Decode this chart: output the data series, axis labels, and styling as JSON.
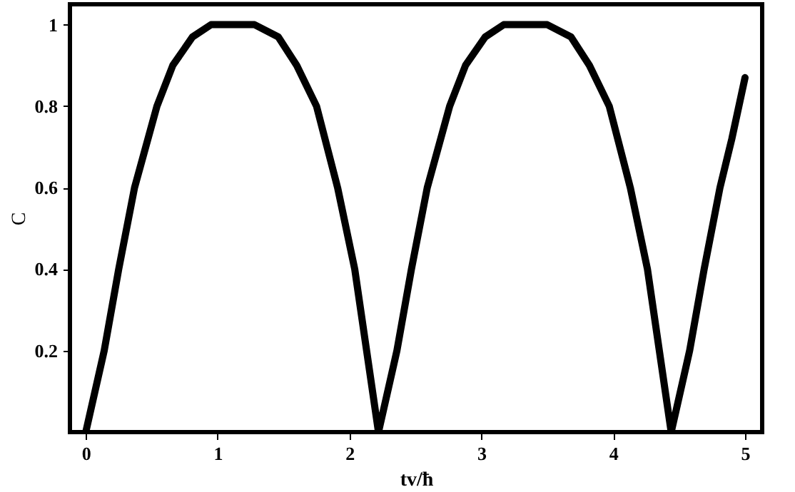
{
  "chart_data": {
    "type": "line",
    "xlabel": "tv/ħ",
    "ylabel": "C",
    "xlim": [
      -0.12,
      5.13
    ],
    "ylim": [
      0,
      1.05
    ],
    "xticks": [
      0,
      1,
      2,
      3,
      4,
      5
    ],
    "yticks": [
      0.2,
      0.4,
      0.6,
      0.8,
      1
    ],
    "grid": false,
    "marker": "none",
    "line_style": "solid",
    "series": [
      {
        "color": "#000000",
        "x": [
          0,
          0.14,
          0.25,
          0.37,
          0.54,
          0.66,
          0.81,
          0.95,
          1.1,
          1.28,
          1.46,
          1.6,
          1.75,
          1.91,
          2.04,
          2.13,
          2.22,
          2.36,
          2.47,
          2.59,
          2.76,
          2.88,
          3.03,
          3.17,
          3.32,
          3.5,
          3.68,
          3.82,
          3.97,
          4.13,
          4.26,
          4.35,
          4.44,
          4.58,
          4.69,
          4.81,
          4.9,
          5.0
        ],
        "values": [
          0,
          0.2,
          0.4,
          0.6,
          0.8,
          0.9,
          0.97,
          1,
          1,
          1,
          0.97,
          0.9,
          0.8,
          0.6,
          0.4,
          0.2,
          0,
          0.2,
          0.4,
          0.6,
          0.8,
          0.9,
          0.97,
          1,
          1,
          1,
          0.97,
          0.9,
          0.8,
          0.6,
          0.4,
          0.2,
          0,
          0.2,
          0.4,
          0.6,
          0.72,
          0.87
        ]
      }
    ]
  }
}
